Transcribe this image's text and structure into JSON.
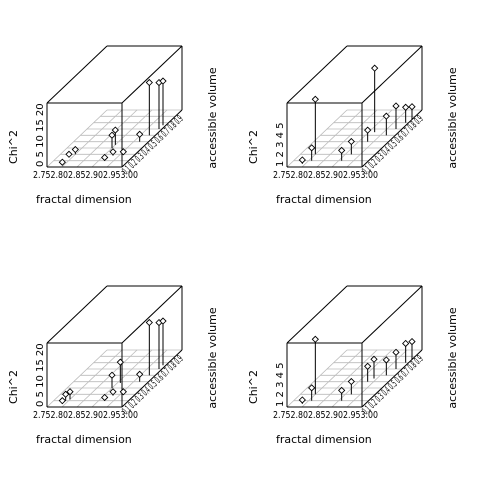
{
  "chart_data": [
    {
      "type": "scatter3d",
      "xlabel": "fractal dimension",
      "ylabel": "accessible volume",
      "zlabel": "Chi^2",
      "x_ticks": [
        "2.75",
        "2.80",
        "2.85",
        "2.90",
        "2.95",
        "3.00"
      ],
      "y_ticks": [
        "0.1",
        "0.2",
        "0.3",
        "0.4",
        "0.5",
        "0.6",
        "0.7",
        "0.8",
        "0.9"
      ],
      "z_ticks": [
        "0",
        "5",
        "10",
        "15",
        "20"
      ],
      "xlim": [
        2.75,
        3.0
      ],
      "ylim": [
        0.0,
        0.9
      ],
      "zlim": [
        0,
        20
      ],
      "points": [
        {
          "x": 2.79,
          "y": 0.05,
          "z": 0.5
        },
        {
          "x": 2.79,
          "y": 0.15,
          "z": 1.0
        },
        {
          "x": 2.8,
          "y": 0.2,
          "z": 1.5
        },
        {
          "x": 2.9,
          "y": 0.3,
          "z": 4.0
        },
        {
          "x": 2.9,
          "y": 0.35,
          "z": 4.6
        },
        {
          "x": 2.92,
          "y": 0.1,
          "z": 1.0
        },
        {
          "x": 2.93,
          "y": 0.18,
          "z": 1.2
        },
        {
          "x": 2.96,
          "y": 0.2,
          "z": 0.8
        },
        {
          "x": 2.97,
          "y": 0.4,
          "z": 2.3
        },
        {
          "x": 2.98,
          "y": 0.5,
          "z": 16.5
        },
        {
          "x": 2.99,
          "y": 0.6,
          "z": 14.5
        },
        {
          "x": 2.99,
          "y": 0.66,
          "z": 13.8
        }
      ]
    },
    {
      "type": "scatter3d",
      "xlabel": "fractal dimension",
      "ylabel": "accessible volume",
      "zlabel": "Chi^2",
      "x_ticks": [
        "2.75",
        "2.80",
        "2.85",
        "2.90",
        "2.95",
        "3.00"
      ],
      "y_ticks": [
        "0.1",
        "0.2",
        "0.3",
        "0.4",
        "0.5",
        "0.6",
        "0.7",
        "0.8",
        "0.9"
      ],
      "z_ticks": [
        "1",
        "2",
        "3",
        "4",
        "5"
      ],
      "xlim": [
        2.75,
        3.0
      ],
      "ylim": [
        0.0,
        0.9
      ],
      "zlim": [
        0,
        5
      ],
      "points": [
        {
          "x": 2.79,
          "y": 0.05,
          "z": 0.3
        },
        {
          "x": 2.8,
          "y": 0.2,
          "z": 4.3
        },
        {
          "x": 2.81,
          "y": 0.1,
          "z": 1.0
        },
        {
          "x": 2.91,
          "y": 0.1,
          "z": 0.8
        },
        {
          "x": 2.92,
          "y": 0.2,
          "z": 1.0
        },
        {
          "x": 2.92,
          "y": 0.55,
          "z": 5.0
        },
        {
          "x": 2.93,
          "y": 0.4,
          "z": 0.9
        },
        {
          "x": 2.97,
          "y": 0.5,
          "z": 1.5
        },
        {
          "x": 2.98,
          "y": 0.6,
          "z": 1.8
        },
        {
          "x": 2.99,
          "y": 0.7,
          "z": 1.2
        },
        {
          "x": 3.0,
          "y": 0.75,
          "z": 1.0
        }
      ]
    },
    {
      "type": "scatter3d",
      "xlabel": "fractal dimension",
      "ylabel": "accessible volume",
      "zlabel": "Chi^2",
      "x_ticks": [
        "2.75",
        "2.80",
        "2.85",
        "2.90",
        "2.95",
        "3.00"
      ],
      "y_ticks": [
        "0.1",
        "0.2",
        "0.3",
        "0.4",
        "0.5",
        "0.6",
        "0.7",
        "0.8",
        "0.9"
      ],
      "z_ticks": [
        "0",
        "5",
        "10",
        "15",
        "20"
      ],
      "xlim": [
        2.75,
        3.0
      ],
      "ylim": [
        0.0,
        0.9
      ],
      "zlim": [
        0,
        20
      ],
      "points": [
        {
          "x": 2.79,
          "y": 0.05,
          "z": 1.0
        },
        {
          "x": 2.79,
          "y": 0.1,
          "z": 2.0
        },
        {
          "x": 2.8,
          "y": 0.12,
          "z": 2.4
        },
        {
          "x": 2.9,
          "y": 0.3,
          "z": 4.0
        },
        {
          "x": 2.91,
          "y": 0.38,
          "z": 6.5
        },
        {
          "x": 2.92,
          "y": 0.1,
          "z": 1.0
        },
        {
          "x": 2.93,
          "y": 0.18,
          "z": 1.2
        },
        {
          "x": 2.96,
          "y": 0.2,
          "z": 0.8
        },
        {
          "x": 2.97,
          "y": 0.4,
          "z": 2.3
        },
        {
          "x": 2.98,
          "y": 0.5,
          "z": 16.5
        },
        {
          "x": 2.99,
          "y": 0.6,
          "z": 14.5
        },
        {
          "x": 2.99,
          "y": 0.66,
          "z": 13.8
        }
      ]
    },
    {
      "type": "scatter3d",
      "xlabel": "fractal dimension",
      "ylabel": "accessible volume",
      "zlabel": "Chi^2",
      "x_ticks": [
        "2.75",
        "2.80",
        "2.85",
        "2.90",
        "2.95",
        "3.00"
      ],
      "y_ticks": [
        "0.1",
        "0.2",
        "0.3",
        "0.4",
        "0.5",
        "0.6",
        "0.7",
        "0.8",
        "0.9"
      ],
      "z_ticks": [
        "1",
        "2",
        "3",
        "4",
        "5"
      ],
      "xlim": [
        2.75,
        3.0
      ],
      "ylim": [
        0.0,
        0.9
      ],
      "zlim": [
        0,
        5
      ],
      "points": [
        {
          "x": 2.79,
          "y": 0.05,
          "z": 0.3
        },
        {
          "x": 2.8,
          "y": 0.2,
          "z": 4.3
        },
        {
          "x": 2.81,
          "y": 0.1,
          "z": 1.0
        },
        {
          "x": 2.91,
          "y": 0.1,
          "z": 0.8
        },
        {
          "x": 2.92,
          "y": 0.2,
          "z": 1.0
        },
        {
          "x": 2.93,
          "y": 0.4,
          "z": 1.2
        },
        {
          "x": 2.94,
          "y": 0.45,
          "z": 1.5
        },
        {
          "x": 2.97,
          "y": 0.5,
          "z": 1.2
        },
        {
          "x": 2.98,
          "y": 0.6,
          "z": 1.3
        },
        {
          "x": 2.99,
          "y": 0.7,
          "z": 1.5
        },
        {
          "x": 3.0,
          "y": 0.75,
          "z": 1.4
        }
      ]
    }
  ]
}
